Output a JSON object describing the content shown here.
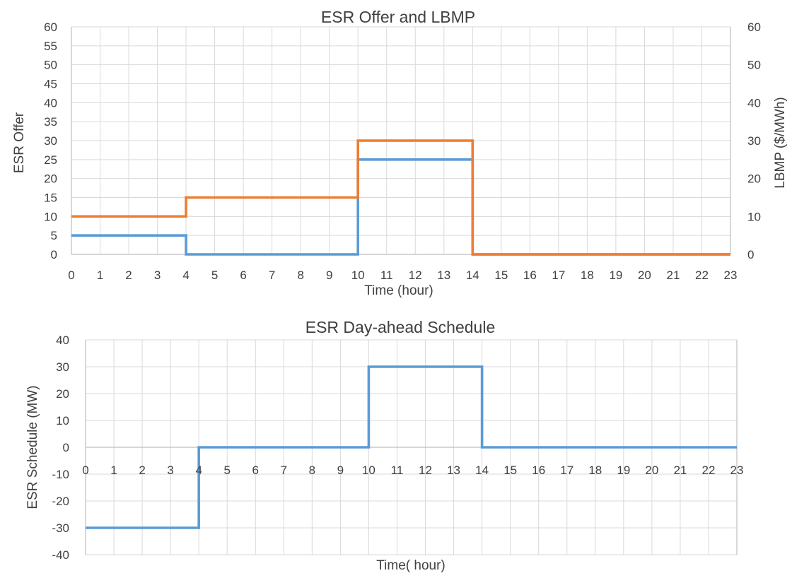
{
  "colors": {
    "blue": "#5b9bd5",
    "orange": "#ed7d31"
  },
  "chart_data": [
    {
      "type": "line",
      "step": true,
      "title": "ESR Offer and LBMP",
      "xlabel": "Time (hour)",
      "ylabel": "ESR Offer",
      "y2label": "LBMP ($/MWh)",
      "x": [
        0,
        1,
        2,
        3,
        4,
        5,
        6,
        7,
        8,
        9,
        10,
        11,
        12,
        13,
        14,
        15,
        16,
        17,
        18,
        19,
        20,
        21,
        22,
        23
      ],
      "xlim": [
        0,
        23
      ],
      "ylim": [
        0,
        60
      ],
      "y2lim": [
        0,
        60
      ],
      "yticks": [
        "0",
        "5",
        "10",
        "15",
        "20",
        "25",
        "30",
        "35",
        "40",
        "45",
        "50",
        "55",
        "60"
      ],
      "y2ticks": [
        "0",
        "10",
        "20",
        "30",
        "40",
        "50",
        "60"
      ],
      "grid": true,
      "series": [
        {
          "axis": "left",
          "color": "#5b9bd5",
          "values": [
            5,
            5,
            5,
            5,
            0,
            0,
            0,
            0,
            0,
            0,
            25,
            25,
            25,
            25,
            0,
            0,
            0,
            0,
            0,
            0,
            0,
            0,
            0,
            0
          ]
        },
        {
          "axis": "right",
          "color": "#ed7d31",
          "values": [
            10,
            10,
            10,
            10,
            15,
            15,
            15,
            15,
            15,
            15,
            30,
            30,
            30,
            30,
            0,
            0,
            0,
            0,
            0,
            0,
            0,
            0,
            0,
            0
          ]
        }
      ]
    },
    {
      "type": "line",
      "step": true,
      "title": "ESR Day-ahead Schedule",
      "xlabel": "Time( hour)",
      "ylabel": "ESR Schedule (MW)",
      "x": [
        0,
        1,
        2,
        3,
        4,
        5,
        6,
        7,
        8,
        9,
        10,
        11,
        12,
        13,
        14,
        15,
        16,
        17,
        18,
        19,
        20,
        21,
        22,
        23
      ],
      "xlim": [
        0,
        23
      ],
      "ylim": [
        -40,
        40
      ],
      "yticks": [
        "-40",
        "-30",
        "-20",
        "-10",
        "0",
        "10",
        "20",
        "30",
        "40"
      ],
      "grid": true,
      "series": [
        {
          "color": "#5b9bd5",
          "values": [
            -30,
            -30,
            -30,
            -30,
            0,
            0,
            0,
            0,
            0,
            0,
            30,
            30,
            30,
            30,
            0,
            0,
            0,
            0,
            0,
            0,
            0,
            0,
            0,
            0
          ]
        }
      ]
    }
  ]
}
